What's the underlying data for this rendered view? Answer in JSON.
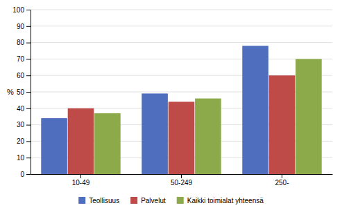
{
  "chart_data": {
    "type": "bar",
    "categories": [
      "10-49",
      "50-249",
      "250-"
    ],
    "series": [
      {
        "name": "Teollisuus",
        "color": "#4F6EBD",
        "values": [
          34,
          49,
          78
        ]
      },
      {
        "name": "Palvelut",
        "color": "#BE4B48",
        "values": [
          40,
          44,
          60
        ]
      },
      {
        "name": "Kaikki toimialat yhteensä",
        "color": "#8DAA4B",
        "values": [
          37,
          46,
          70
        ]
      }
    ],
    "ylabel": "%",
    "ylim": [
      0,
      100
    ],
    "yticks": [
      0,
      10,
      20,
      30,
      40,
      50,
      60,
      70,
      80,
      90,
      100
    ],
    "grid": true,
    "legend": "bottom"
  }
}
